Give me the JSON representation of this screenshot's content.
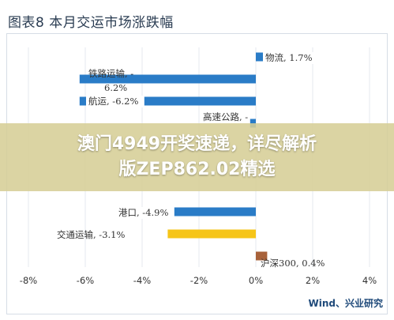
{
  "header": {
    "title": "图表8  本月交运市场涨跌幅"
  },
  "overlay": {
    "line1": "澳门4949开奖速递，详尽解析",
    "line2": "版ZEP862.02精选"
  },
  "footer": {
    "source": "Wind、兴业研究"
  },
  "colors": {
    "bar_blue": "#2a7cc7",
    "bar_yellow": "#f6c518",
    "bar_brown": "#a8623a",
    "grid": "#e4e9ef",
    "axis_text": "#333333",
    "banner": "#d6ce96"
  },
  "chart_data": {
    "type": "bar",
    "orientation": "horizontal",
    "xlim": [
      -8,
      4
    ],
    "xticks": [
      "-8%",
      "-6%",
      "-4%",
      "-2%",
      "0%",
      "2%",
      "4%"
    ],
    "tick_values": [
      -8,
      -6,
      -4,
      -2,
      0,
      2,
      4
    ],
    "grid": true,
    "bars": [
      {
        "label": "物流, 1.7%",
        "value": 1.7,
        "color": "blue"
      },
      {
        "label": "铁路运输, -6.2%",
        "value": -6.2,
        "color": "blue"
      },
      {
        "label": "航运, -6.2%",
        "value": -6.2,
        "color": "blue"
      },
      {
        "label": "高速公路, -",
        "value": -0.2,
        "color": "blue"
      },
      {
        "label": "港口, -4.9%",
        "value": -4.9,
        "color": "blue"
      },
      {
        "label": "交通运输, -3.1%",
        "value": -3.1,
        "color": "yellow"
      },
      {
        "label": "沪深300, 0.4%",
        "value": 0.4,
        "color": "brown"
      }
    ]
  }
}
